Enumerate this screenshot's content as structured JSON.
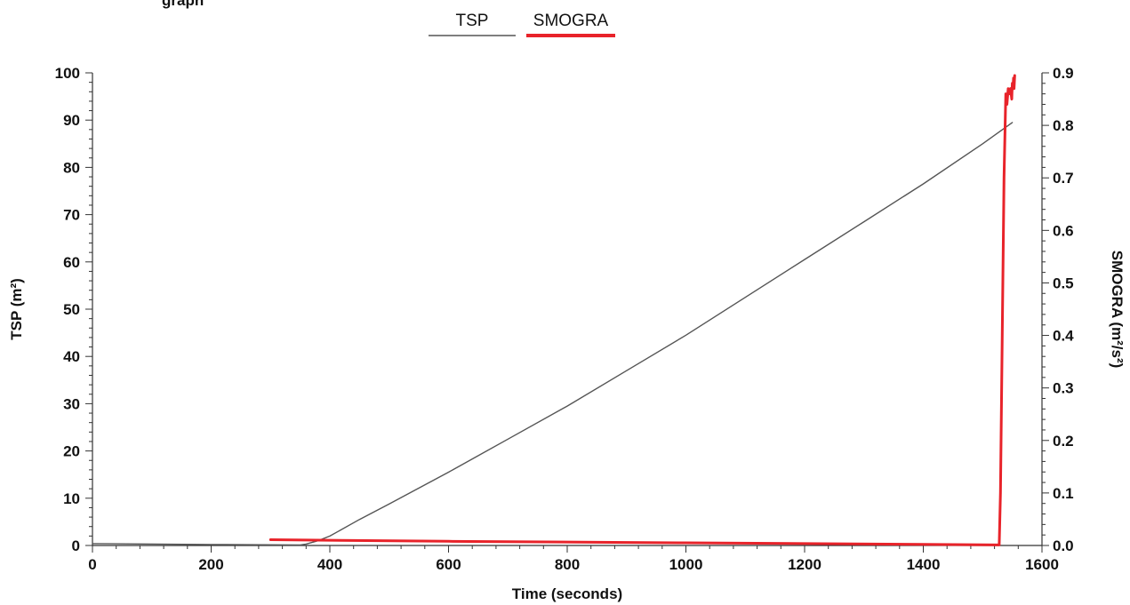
{
  "corner_text": "graph",
  "chart_data": {
    "type": "line",
    "title": "",
    "xlabel": "Time (seconds)",
    "ylabel": "TSP (m²)",
    "y2label": "SMOGRA (m²/s²)",
    "xlim": [
      0,
      1600
    ],
    "ylim": [
      0,
      100
    ],
    "y2lim": [
      0,
      0.9
    ],
    "xticks": [
      0,
      200,
      400,
      600,
      800,
      1000,
      1200,
      1400,
      1600
    ],
    "yticks": [
      0,
      10,
      20,
      30,
      40,
      50,
      60,
      70,
      80,
      90,
      100
    ],
    "y2ticks": [
      0.0,
      0.1,
      0.2,
      0.3,
      0.4,
      0.5,
      0.6,
      0.7,
      0.8,
      0.9
    ],
    "y2tick_labels": [
      "0.0",
      "0.1",
      "0.2",
      "0.3",
      "0.4",
      "0.5",
      "0.6",
      "0.7",
      "0.8",
      "0.9"
    ],
    "grid": false,
    "legend_position": "top-center",
    "series": [
      {
        "name": "TSP",
        "axis": "left",
        "color": "#555555",
        "x": [
          0,
          200,
          350,
          360,
          380,
          400,
          450,
          500,
          600,
          700,
          800,
          900,
          1000,
          1100,
          1200,
          1300,
          1400,
          1500,
          1550
        ],
        "y": [
          0.4,
          0.2,
          0.1,
          0.3,
          1.0,
          2.0,
          5.5,
          8.8,
          15.5,
          22.5,
          29.5,
          37.0,
          44.5,
          52.5,
          60.5,
          68.5,
          76.5,
          85.0,
          89.5
        ]
      },
      {
        "name": "SMOGRA",
        "axis": "right",
        "color": "#e8232a",
        "x": [
          300,
          600,
          1000,
          1400,
          1528,
          1530,
          1533,
          1536,
          1539,
          1541,
          1543,
          1545,
          1547,
          1549,
          1550,
          1551,
          1552,
          1553,
          1554
        ],
        "y": [
          0.011,
          0.008,
          0.005,
          0.002,
          0.001,
          0.1,
          0.4,
          0.7,
          0.86,
          0.84,
          0.87,
          0.86,
          0.87,
          0.85,
          0.88,
          0.87,
          0.89,
          0.87,
          0.895
        ]
      }
    ]
  }
}
